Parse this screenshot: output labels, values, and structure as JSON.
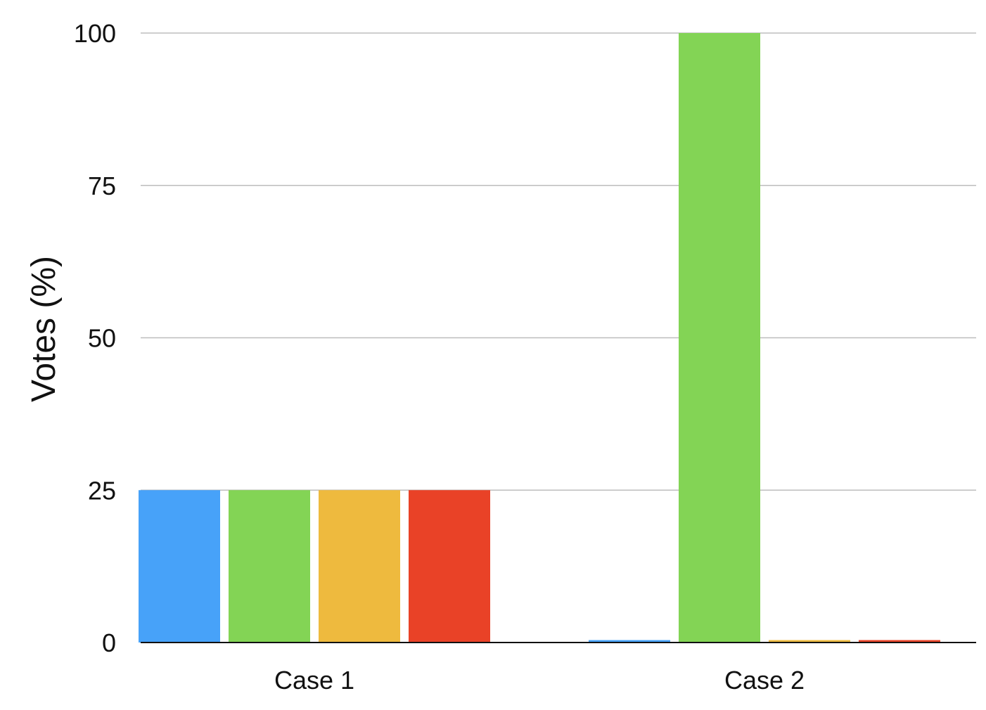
{
  "chart_data": {
    "type": "bar",
    "title": "",
    "xlabel": "",
    "ylabel": "Votes (%)",
    "categories": [
      "Case 1",
      "Case 2"
    ],
    "series": [
      {
        "values": [
          25,
          0.4
        ],
        "color": "#47a2f9"
      },
      {
        "values": [
          25,
          100
        ],
        "color": "#83d455"
      },
      {
        "values": [
          25,
          0.4
        ],
        "color": "#eeba3e"
      },
      {
        "values": [
          25,
          0.4
        ],
        "color": "#e94227"
      }
    ],
    "ylim": [
      0,
      100
    ],
    "yticks": [
      0,
      25,
      50,
      75,
      100
    ],
    "grid": true,
    "legend": "none"
  }
}
